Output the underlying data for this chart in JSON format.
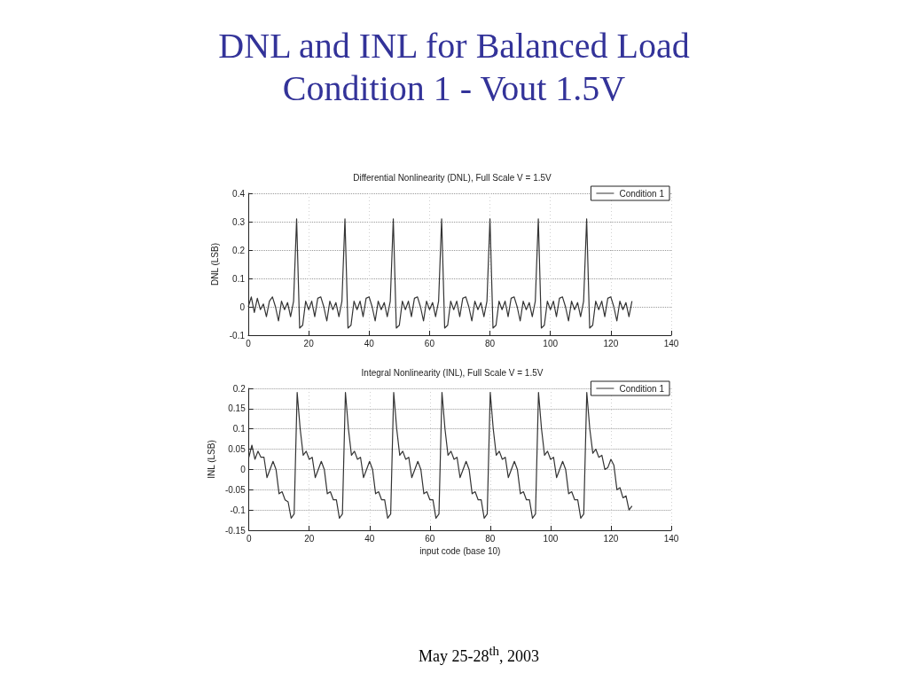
{
  "chart_data": [
    {
      "type": "line",
      "title": "DNL and INL for Balanced Load Condition 1 - Vout 1.5V",
      "subtitle": "Differential Nonlinearity (DNL), Full Scale V = 1.5V",
      "ylabel": "DNL (LSB)",
      "x": [
        0,
        1,
        2,
        3,
        4,
        5,
        6,
        7,
        8,
        9,
        10,
        11,
        12,
        13,
        14,
        15,
        16,
        17,
        18,
        19,
        20,
        21,
        22,
        23,
        24,
        25,
        26,
        27,
        28,
        29,
        30,
        31,
        32,
        33,
        34,
        35,
        36,
        37,
        38,
        39,
        40,
        41,
        42,
        43,
        44,
        45,
        46,
        47,
        48,
        49,
        50,
        51,
        52,
        53,
        54,
        55,
        56,
        57,
        58,
        59,
        60,
        61,
        62,
        63,
        64,
        65,
        66,
        67,
        68,
        69,
        70,
        71,
        72,
        73,
        74,
        75,
        76,
        77,
        78,
        79,
        80,
        81,
        82,
        83,
        84,
        85,
        86,
        87,
        88,
        89,
        90,
        91,
        92,
        93,
        94,
        95,
        96,
        97,
        98,
        99,
        100,
        101,
        102,
        103,
        104,
        105,
        106,
        107,
        108,
        109,
        110,
        111,
        112,
        113,
        114,
        115,
        116,
        117,
        118,
        119,
        120,
        121,
        122,
        123,
        124,
        125,
        126,
        127
      ],
      "series": [
        {
          "name": "Condition 1",
          "color": "#333333",
          "values": [
            0,
            0.035,
            -0.02,
            0.03,
            -0.01,
            0.01,
            -0.035,
            0.02,
            0.035,
            0,
            -0.05,
            0.02,
            -0.01,
            0.015,
            -0.035,
            0.02,
            0.31,
            -0.075,
            -0.065,
            0.02,
            -0.01,
            0.02,
            -0.035,
            0.03,
            0.035,
            0,
            -0.05,
            0.02,
            -0.01,
            0.015,
            -0.035,
            0.02,
            0.31,
            -0.075,
            -0.065,
            0.02,
            -0.01,
            0.02,
            -0.035,
            0.03,
            0.035,
            0,
            -0.05,
            0.02,
            -0.01,
            0.015,
            -0.035,
            0.02,
            0.31,
            -0.075,
            -0.065,
            0.02,
            -0.01,
            0.02,
            -0.035,
            0.03,
            0.035,
            0,
            -0.05,
            0.02,
            -0.01,
            0.015,
            -0.035,
            0.02,
            0.31,
            -0.075,
            -0.065,
            0.02,
            -0.01,
            0.02,
            -0.035,
            0.03,
            0.035,
            0,
            -0.05,
            0.02,
            -0.01,
            0.015,
            -0.035,
            0.02,
            0.31,
            -0.075,
            -0.065,
            0.02,
            -0.01,
            0.02,
            -0.035,
            0.03,
            0.035,
            0,
            -0.05,
            0.02,
            -0.01,
            0.015,
            -0.035,
            0.02,
            0.31,
            -0.075,
            -0.065,
            0.02,
            -0.01,
            0.02,
            -0.035,
            0.03,
            0.035,
            0,
            -0.05,
            0.02,
            -0.01,
            0.015,
            -0.035,
            0.02,
            0.31,
            -0.075,
            -0.065,
            0.02,
            -0.01,
            0.02,
            -0.035,
            0.03,
            0.035,
            0,
            -0.05,
            0.02,
            -0.01,
            0.015,
            -0.035,
            0.02
          ]
        }
      ],
      "xlim": [
        0,
        140
      ],
      "xticks": [
        0,
        20,
        40,
        60,
        80,
        100,
        120,
        140
      ],
      "ylim": [
        -0.1,
        0.4
      ],
      "yticks": [
        -0.1,
        0,
        0.1,
        0.2,
        0.3,
        0.4
      ],
      "grid": true,
      "legend": "top right"
    },
    {
      "type": "line",
      "title": "Integral Nonlinearity (INL), Full Scale V = 1.5V",
      "xlabel": "input code (base 10)",
      "ylabel": "INL (LSB)",
      "x": [
        0,
        1,
        2,
        3,
        4,
        5,
        6,
        7,
        8,
        9,
        10,
        11,
        12,
        13,
        14,
        15,
        16,
        17,
        18,
        19,
        20,
        21,
        22,
        23,
        24,
        25,
        26,
        27,
        28,
        29,
        30,
        31,
        32,
        33,
        34,
        35,
        36,
        37,
        38,
        39,
        40,
        41,
        42,
        43,
        44,
        45,
        46,
        47,
        48,
        49,
        50,
        51,
        52,
        53,
        54,
        55,
        56,
        57,
        58,
        59,
        60,
        61,
        62,
        63,
        64,
        65,
        66,
        67,
        68,
        69,
        70,
        71,
        72,
        73,
        74,
        75,
        76,
        77,
        78,
        79,
        80,
        81,
        82,
        83,
        84,
        85,
        86,
        87,
        88,
        89,
        90,
        91,
        92,
        93,
        94,
        95,
        96,
        97,
        98,
        99,
        100,
        101,
        102,
        103,
        104,
        105,
        106,
        107,
        108,
        109,
        110,
        111,
        112,
        113,
        114,
        115,
        116,
        117,
        118,
        119,
        120,
        121,
        122,
        123,
        124,
        125,
        126,
        127
      ],
      "series": [
        {
          "name": "Condition 1",
          "color": "#333333",
          "values": [
            0.03,
            0.06,
            0.025,
            0.045,
            0.03,
            0.03,
            -0.02,
            0,
            0.02,
            0,
            -0.06,
            -0.055,
            -0.075,
            -0.08,
            -0.12,
            -0.11,
            0.19,
            0.1,
            0.035,
            0.045,
            0.025,
            0.03,
            -0.02,
            0,
            0.02,
            0,
            -0.06,
            -0.055,
            -0.075,
            -0.075,
            -0.12,
            -0.11,
            0.19,
            0.1,
            0.035,
            0.045,
            0.025,
            0.03,
            -0.02,
            0,
            0.02,
            0,
            -0.06,
            -0.055,
            -0.075,
            -0.075,
            -0.12,
            -0.11,
            0.19,
            0.1,
            0.035,
            0.045,
            0.025,
            0.03,
            -0.02,
            0,
            0.02,
            0,
            -0.06,
            -0.055,
            -0.075,
            -0.075,
            -0.12,
            -0.11,
            0.19,
            0.1,
            0.035,
            0.045,
            0.025,
            0.03,
            -0.02,
            0,
            0.02,
            0,
            -0.06,
            -0.055,
            -0.075,
            -0.075,
            -0.12,
            -0.11,
            0.19,
            0.1,
            0.035,
            0.045,
            0.025,
            0.03,
            -0.02,
            0,
            0.02,
            0,
            -0.06,
            -0.055,
            -0.075,
            -0.075,
            -0.12,
            -0.11,
            0.19,
            0.1,
            0.035,
            0.045,
            0.025,
            0.03,
            -0.02,
            0,
            0.02,
            0,
            -0.06,
            -0.055,
            -0.075,
            -0.075,
            -0.12,
            -0.11,
            0.19,
            0.1,
            0.04,
            0.05,
            0.03,
            0.035,
            0,
            0.005,
            0.025,
            0.01,
            -0.05,
            -0.045,
            -0.07,
            -0.065,
            -0.1,
            -0.09
          ]
        }
      ],
      "xlim": [
        0,
        140
      ],
      "xticks": [
        0,
        20,
        40,
        60,
        80,
        100,
        120,
        140
      ],
      "ylim": [
        -0.15,
        0.2
      ],
      "yticks": [
        -0.15,
        -0.1,
        -0.05,
        0,
        0.05,
        0.1,
        0.15,
        0.2
      ],
      "grid": true,
      "legend": "top right",
      "annotations": [
        "May 25-28$^{th}$, 2003"
      ]
    }
  ]
}
